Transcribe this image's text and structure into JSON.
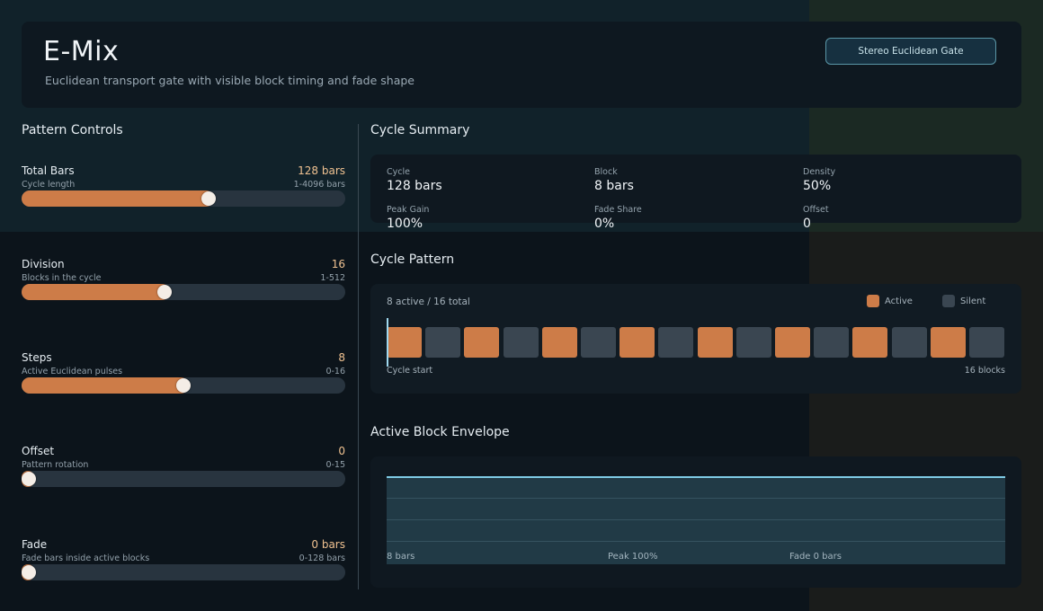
{
  "app": {
    "title": "E-Mix",
    "subtitle": "Euclidean transport gate with visible block timing and fade shape",
    "mode_button": "Stereo Euclidean Gate"
  },
  "controls": {
    "title": "Pattern Controls",
    "total_bars": {
      "name": "Total Bars",
      "desc": "Cycle length",
      "value": "128 bars",
      "range": "1-4096 bars",
      "level": 0.58
    },
    "division": {
      "name": "Division",
      "desc": "Blocks in the cycle",
      "value": "16",
      "range": "1-512",
      "level": 0.44
    },
    "steps": {
      "name": "Steps",
      "desc": "Active Euclidean pulses",
      "value": "8",
      "range": "0-16",
      "level": 0.5
    },
    "offset": {
      "name": "Offset",
      "desc": "Pattern rotation",
      "value": "0",
      "range": "0-15",
      "level": 0.0
    },
    "fade": {
      "name": "Fade",
      "desc": "Fade bars inside active blocks",
      "value": "0 bars",
      "range": "0-128 bars",
      "level": 0.0
    }
  },
  "summary": {
    "title": "Cycle Summary",
    "cycle": {
      "label": "Cycle",
      "value": "128 bars"
    },
    "block": {
      "label": "Block",
      "value": "8 bars"
    },
    "density": {
      "label": "Density",
      "value": "50%"
    },
    "peak_gain": {
      "label": "Peak Gain",
      "value": "100%"
    },
    "fade_share": {
      "label": "Fade Share",
      "value": "0%"
    },
    "offset": {
      "label": "Offset",
      "value": "0"
    }
  },
  "pattern": {
    "title": "Cycle Pattern",
    "count": "8 active / 16 total",
    "legend_active": "Active",
    "legend_silent": "Silent",
    "start_label": "Cycle start",
    "end_label": "16 blocks",
    "blocks": [
      1,
      0,
      1,
      0,
      1,
      0,
      1,
      0,
      1,
      0,
      1,
      0,
      1,
      0,
      1,
      0
    ],
    "colors": {
      "active": "#cd7c48",
      "silent": "#3a4651"
    }
  },
  "envelope": {
    "title": "Active Block Envelope",
    "label_left": "8 bars",
    "label_mid": "Peak 100%",
    "label_right": "Fade 0 bars",
    "peak": 1.0,
    "fade": 0
  },
  "colors": {
    "accent": "#cd7c48",
    "line": "#7fcbe6",
    "value_text": "#f0c291"
  }
}
